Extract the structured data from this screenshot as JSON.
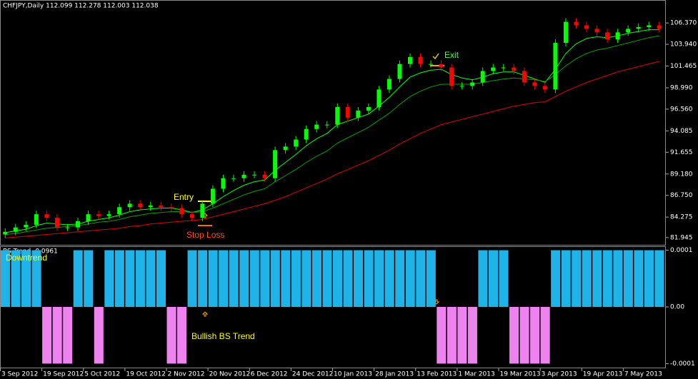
{
  "chart_data": [
    {
      "type": "candlestick",
      "title": "CHFJPY,Daily  112.099 112.278 112.003 112.038",
      "categories": [
        "3 Sep 2012",
        null,
        null,
        null,
        "19 Sep 2012",
        null,
        null,
        null,
        "5 Oct 2012",
        null,
        null,
        null,
        "19 Oct 2012",
        null,
        null,
        null,
        "2 Nov 2012",
        null,
        null,
        null,
        "20 Nov 2012",
        null,
        null,
        null,
        "6 Dec 2012",
        null,
        null,
        null,
        "24 Dec 2012",
        null,
        null,
        null,
        "10 Jan 2013",
        null,
        null,
        null,
        "28 Jan 2013",
        null,
        null,
        null,
        "13 Feb 2013",
        null,
        null,
        null,
        "1 Mar 2013",
        null,
        null,
        null,
        "19 Mar 2013",
        null,
        null,
        null,
        "3 Apr 2013",
        null,
        null,
        null,
        "19 Apr 2013",
        null,
        null,
        null,
        "7 May 2013",
        null,
        null,
        null
      ],
      "open": [
        82.3,
        82.6,
        83.1,
        83.4,
        84.6,
        84.2,
        83.1,
        83.1,
        83.8,
        84.6,
        84.4,
        84.6,
        85.4,
        85.8,
        85.4,
        85.6,
        85.4,
        85.3,
        84.6,
        84.2,
        85.8,
        87.5,
        88.7,
        88.7,
        89.1,
        89.1,
        88.7,
        91.9,
        92.3,
        93.1,
        94.3,
        94.8,
        94.8,
        96.8,
        95.6,
        96.4,
        96.8,
        98.8,
        100.0,
        101.7,
        102.5,
        101.7,
        101.7,
        101.3,
        99.2,
        99.2,
        99.6,
        100.9,
        101.3,
        101.3,
        100.9,
        99.6,
        99.2,
        98.8,
        104.1,
        106.5,
        106.1,
        105.7,
        105.3,
        104.5,
        105.3,
        105.7,
        105.9,
        106.1
      ],
      "high": [
        83.0,
        83.5,
        83.8,
        85.0,
        85.0,
        84.6,
        83.5,
        84.2,
        85.0,
        85.0,
        85.0,
        85.8,
        86.2,
        86.2,
        86.0,
        86.0,
        85.8,
        85.7,
        85.0,
        86.2,
        87.9,
        89.1,
        89.1,
        89.5,
        89.5,
        89.5,
        92.3,
        92.7,
        93.5,
        94.7,
        95.2,
        95.2,
        97.2,
        97.2,
        96.8,
        97.2,
        99.2,
        100.4,
        102.1,
        102.9,
        102.9,
        102.1,
        102.1,
        101.7,
        99.6,
        100.0,
        101.3,
        101.7,
        101.7,
        101.7,
        101.3,
        100.0,
        99.6,
        104.5,
        106.9,
        106.9,
        106.5,
        106.1,
        105.7,
        105.7,
        106.1,
        106.3,
        106.5,
        106.5
      ],
      "low": [
        81.9,
        82.2,
        82.7,
        83.0,
        83.8,
        82.7,
        82.7,
        82.7,
        83.4,
        84.0,
        84.0,
        84.2,
        85.0,
        85.0,
        85.0,
        85.0,
        84.9,
        84.2,
        83.8,
        83.8,
        85.4,
        87.1,
        88.3,
        88.3,
        88.7,
        88.3,
        88.3,
        91.5,
        91.9,
        92.7,
        93.9,
        94.4,
        94.4,
        95.2,
        95.2,
        96.0,
        96.4,
        98.4,
        99.6,
        101.3,
        101.3,
        101.3,
        100.9,
        98.8,
        98.8,
        98.8,
        99.2,
        100.5,
        100.9,
        100.5,
        99.2,
        98.8,
        98.4,
        98.4,
        103.7,
        105.7,
        105.3,
        104.9,
        104.1,
        104.1,
        104.9,
        105.3,
        105.5,
        105.3
      ],
      "close": [
        82.6,
        83.1,
        83.4,
        84.6,
        84.2,
        83.1,
        83.1,
        83.8,
        84.6,
        84.4,
        84.6,
        85.4,
        85.8,
        85.4,
        85.6,
        85.4,
        85.3,
        84.6,
        84.2,
        85.8,
        87.5,
        88.7,
        88.7,
        89.1,
        89.1,
        88.7,
        91.9,
        92.3,
        93.1,
        94.3,
        94.8,
        94.8,
        96.8,
        95.6,
        96.4,
        96.8,
        98.8,
        100.0,
        101.7,
        102.5,
        101.7,
        101.7,
        101.3,
        99.2,
        99.2,
        99.6,
        100.9,
        101.3,
        101.3,
        100.9,
        99.6,
        99.2,
        98.8,
        104.1,
        106.5,
        106.1,
        105.7,
        105.3,
        104.5,
        105.3,
        105.7,
        105.9,
        106.1,
        105.7
      ],
      "up_color": "#00ff00",
      "down_color": "#ff0000",
      "series": [
        {
          "color": "#00ff00",
          "values": [
            82.5,
            82.7,
            82.9,
            83.3,
            83.6,
            83.5,
            83.4,
            83.5,
            83.8,
            84.0,
            84.2,
            84.5,
            84.9,
            85.1,
            85.2,
            85.3,
            85.3,
            85.1,
            84.8,
            85.1,
            85.8,
            86.6,
            87.3,
            87.9,
            88.3,
            88.5,
            89.6,
            90.5,
            91.4,
            92.4,
            93.2,
            93.8,
            94.8,
            95.2,
            95.6,
            96.0,
            96.9,
            97.9,
            99.1,
            100.2,
            100.7,
            101.0,
            101.1,
            100.5,
            100.1,
            99.9,
            100.2,
            100.6,
            100.8,
            100.8,
            100.4,
            100.0,
            99.6,
            101.1,
            102.9,
            104.0,
            104.6,
            104.8,
            104.7,
            104.9,
            105.2,
            105.4,
            105.6,
            105.6
          ]
        },
        {
          "color": "#00a000",
          "values": [
            82.3,
            82.4,
            82.6,
            82.8,
            83.0,
            83.1,
            83.2,
            83.3,
            83.5,
            83.7,
            83.8,
            84.0,
            84.3,
            84.5,
            84.7,
            84.8,
            84.9,
            84.9,
            84.8,
            84.9,
            85.3,
            85.8,
            86.3,
            86.8,
            87.2,
            87.5,
            88.3,
            89.0,
            89.7,
            90.5,
            91.2,
            91.8,
            92.7,
            93.3,
            93.9,
            94.5,
            95.3,
            96.1,
            97.1,
            98.0,
            98.6,
            99.1,
            99.4,
            99.4,
            99.4,
            99.4,
            99.6,
            99.8,
            100.0,
            100.1,
            100.0,
            99.9,
            99.7,
            100.5,
            101.5,
            102.3,
            102.9,
            103.3,
            103.5,
            103.8,
            104.1,
            104.4,
            104.7,
            104.9
          ]
        },
        {
          "color": "#e00000",
          "values": [
            81.9,
            82.0,
            82.1,
            82.2,
            82.3,
            82.4,
            82.5,
            82.6,
            82.7,
            82.8,
            82.9,
            83.0,
            83.2,
            83.3,
            83.5,
            83.6,
            83.7,
            83.8,
            83.9,
            84.0,
            84.3,
            84.6,
            84.9,
            85.2,
            85.5,
            85.8,
            86.2,
            86.6,
            87.1,
            87.6,
            88.1,
            88.6,
            89.2,
            89.7,
            90.2,
            90.7,
            91.3,
            91.9,
            92.6,
            93.2,
            93.8,
            94.3,
            94.8,
            95.1,
            95.4,
            95.7,
            96.0,
            96.3,
            96.6,
            96.9,
            97.1,
            97.3,
            97.4,
            98.0,
            98.6,
            99.1,
            99.6,
            100.0,
            100.4,
            100.8,
            101.1,
            101.4,
            101.7,
            102.0
          ]
        }
      ],
      "annotations": [
        "Entry",
        "Stop Loss",
        "Exit"
      ],
      "ylim": [
        81.2,
        108.82
      ],
      "yticks": [
        {
          "value": 106.37,
          "label": "106.370"
        },
        {
          "value": 103.94,
          "label": "103.940"
        },
        {
          "value": 101.465,
          "label": "101.465"
        },
        {
          "value": 98.99,
          "label": "98.990"
        },
        {
          "value": 96.56,
          "label": "96.560"
        },
        {
          "value": 94.085,
          "label": "94.085"
        },
        {
          "value": 91.655,
          "label": "91.655"
        },
        {
          "value": 89.18,
          "label": "89.180"
        },
        {
          "value": 86.75,
          "label": "86.750"
        },
        {
          "value": 84.275,
          "label": "84.275"
        },
        {
          "value": 81.945,
          "label": "81.945"
        }
      ]
    },
    {
      "type": "bar",
      "title": "BS Trend -0.0961",
      "annotations": [
        "Downtrend",
        "Bullish BS Trend"
      ],
      "positive_color": "#1eb4ea",
      "negative_color": "#ee82ee",
      "values": [
        0.0001,
        0.0001,
        0.0001,
        0.0001,
        -0.0001,
        -0.0001,
        -0.0001,
        0.0001,
        0.0001,
        -0.0001,
        0.0001,
        0.0001,
        0.0001,
        0.0001,
        0.0001,
        0.0001,
        -0.0001,
        -0.0001,
        0.0001,
        0.0001,
        0.0001,
        0.0001,
        0.0001,
        0.0001,
        0.0001,
        0.0001,
        0.0001,
        0.0001,
        0.0001,
        0.0001,
        0.0001,
        0.0001,
        0.0001,
        0.0001,
        0.0001,
        0.0001,
        0.0001,
        0.0001,
        0.0001,
        0.0001,
        0.0001,
        0.0001,
        -0.0001,
        -0.0001,
        -0.0001,
        -0.0001,
        0.0001,
        0.0001,
        0.0001,
        -0.0001,
        -0.0001,
        -0.0001,
        -0.0001,
        0.0001,
        0.0001,
        0.0001,
        0.0001,
        0.0001,
        0.0001,
        0.0001,
        0.0001,
        0.0001,
        0.0001,
        0.0001
      ],
      "ylim": [
        -0.000107,
        0.000107
      ],
      "yticks": [
        0.0001,
        {
          "value": 0,
          "label": "0.00"
        },
        -0.0001
      ]
    }
  ]
}
